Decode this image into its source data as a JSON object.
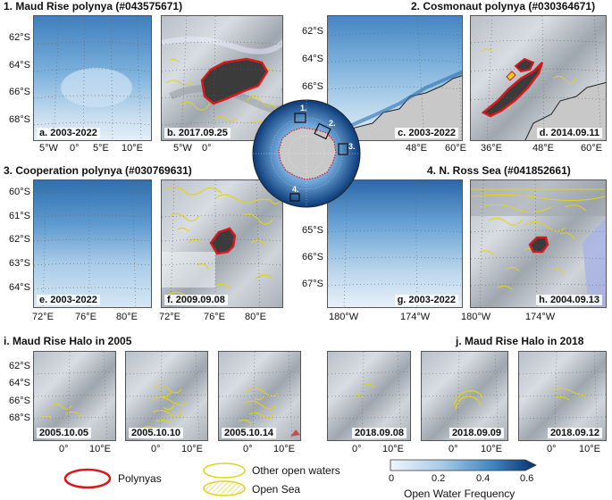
{
  "titles": {
    "t1": "1. Maud Rise polynya (#043575671)",
    "t2": "2. Cosmonaut polynya (#030364671)",
    "t3": "3. Cooperation polynya (#030769631)",
    "t4": "4. N. Ross Sea (#041852661)",
    "ti": "i. Maud Rise Halo in 2005",
    "tj": "j. Maud Rise Halo in 2018"
  },
  "panel_labels": {
    "a": "a. 2003-2022",
    "b": "b. 2017.09.25",
    "c": "c. 2003-2022",
    "d": "d. 2014.09.11",
    "e": "e. 2003-2022",
    "f": "f. 2009.09.08",
    "g": "g. 2003-2022",
    "h": "h. 2004.09.13",
    "i1": "2005.10.05",
    "i2": "2005.10.10",
    "i3": "2005.10.14",
    "j1": "2018.09.08",
    "j2": "2018.09.09",
    "j3": "2018.09.12"
  },
  "ticks": {
    "row1_y": [
      "62°S",
      "64°S",
      "66°S",
      "68°S"
    ],
    "row1_x_a": [
      "5°W",
      "0°",
      "5°E",
      "10°E"
    ],
    "row1_x_b": [
      "5°W",
      "0°"
    ],
    "row1_y_c": [
      "62°S",
      "64°S",
      "66°S"
    ],
    "row1_x_c": [
      "48°E",
      "60°E"
    ],
    "row1_x_d": [
      "36°E",
      "48°E",
      "60°E"
    ],
    "row2_y": [
      "60°S",
      "61°S",
      "62°S",
      "63°S",
      "64°S"
    ],
    "row2_x_e": [
      "72°E",
      "76°E",
      "80°E"
    ],
    "row2_x_f": [
      "72°E",
      "76°E",
      "80°E"
    ],
    "row2_y_g": [
      "65°S",
      "66°S",
      "67°S"
    ],
    "row2_x_g": [
      "180°W",
      "174°W"
    ],
    "row2_x_h": [
      "180°W",
      "174°W"
    ],
    "row3_y": [
      "62°S",
      "64°S",
      "66°S",
      "68°S"
    ],
    "row3_x": [
      "0°",
      "10°E"
    ]
  },
  "globe_labels": [
    "1.",
    "2.",
    "3.",
    "4."
  ],
  "legend": {
    "polynyas": "Polynyas",
    "other": "Other open waters",
    "opensea": "Open Sea",
    "colorbar_title": "Open Water Frequency",
    "colorbar_ticks": [
      "0",
      "0.2",
      "0.4",
      "0.6"
    ]
  },
  "colors": {
    "polynya": "#d7191c",
    "other": "#e5d21c",
    "freq_dark": "#08306b",
    "freq_light": "#f0f6fc",
    "land": "#c8c8c8"
  }
}
